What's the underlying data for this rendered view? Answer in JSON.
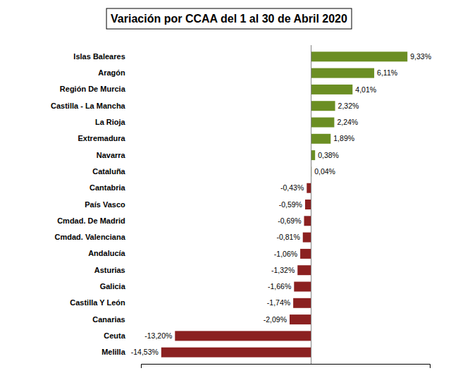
{
  "chart_data": {
    "type": "bar",
    "orientation": "horizontal",
    "title": "Variación por CCAA del 1 al 30 de Abril 2020",
    "categories": [
      "Islas Baleares",
      "Aragón",
      "Región De Murcia",
      "Castilla - La Mancha",
      "La Rioja",
      "Extremadura",
      "Navarra",
      "Cataluña",
      "Cantabria",
      "País Vasco",
      "Cmdad. De Madrid",
      "Cmdad. Valenciana",
      "Andalucía",
      "Asturias",
      "Galicia",
      "Castilla Y León",
      "Canarias",
      "Ceuta",
      "Melilla"
    ],
    "values": [
      9.33,
      6.11,
      4.01,
      2.32,
      2.24,
      1.89,
      0.38,
      0.04,
      -0.43,
      -0.59,
      -0.69,
      -0.81,
      -1.06,
      -1.32,
      -1.66,
      -1.74,
      -2.09,
      -13.2,
      -14.53
    ],
    "value_labels": [
      "9,33%",
      "6,11%",
      "4,01%",
      "2,32%",
      "2,24%",
      "1,89%",
      "0,38%",
      "0,04%",
      "-0,43%",
      "-0,59%",
      "-0,69%",
      "-0,81%",
      "-1,06%",
      "-1,32%",
      "-1,66%",
      "-1,74%",
      "-2,09%",
      "-13,20%",
      "-14,53%"
    ],
    "data_labels": true,
    "colors": [
      "#6B8E23",
      "#6B8E23",
      "#6B8E23",
      "#6B8E23",
      "#6B8E23",
      "#6B8E23",
      "#6B8E23",
      "#6B8E23",
      "#8B2020",
      "#8B2020",
      "#8B2020",
      "#8B2020",
      "#8B2020",
      "#8B2020",
      "#8B2020",
      "#8B2020",
      "#8B2020",
      "#8B2020",
      "#8B2020"
    ],
    "xlim": [
      -16.5,
      11.5
    ],
    "xticks": [],
    "tick_labels": "y",
    "grid": false
  }
}
